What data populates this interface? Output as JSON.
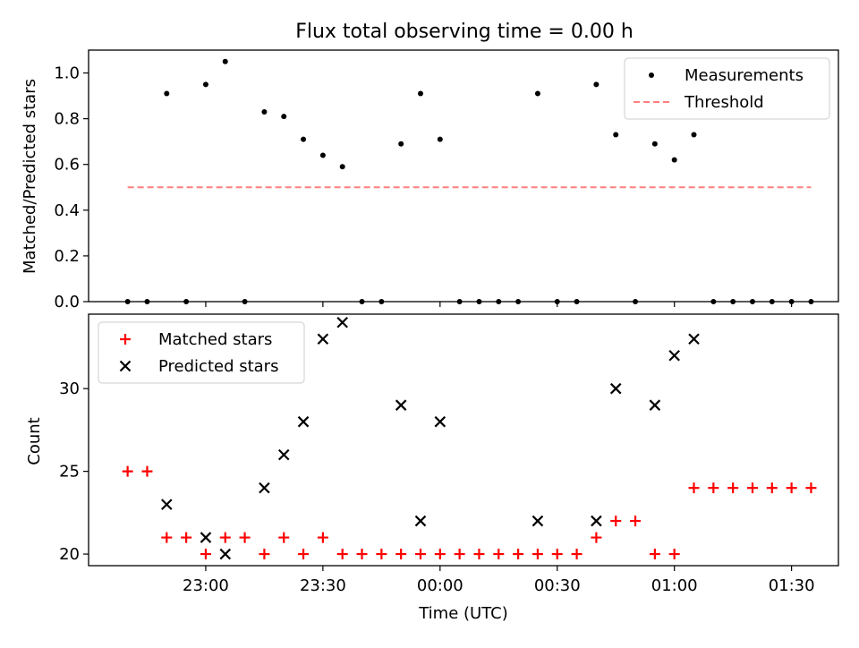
{
  "figure": {
    "title": "Flux total observing time = 0.00 h",
    "top_ylabel": "Matched/Predicted stars",
    "bottom_ylabel": "Count",
    "xlabel": "Time (UTC)"
  },
  "colors": {
    "measurements": "#000000",
    "threshold": "#ff7f7f",
    "matched": "#ff0000",
    "predicted": "#000000"
  },
  "chart_data": [
    {
      "type": "scatter",
      "panel": "top",
      "title": "Flux total observing time = 0.00 h",
      "ylabel": "Matched/Predicted stars",
      "ylim": [
        0,
        1.1
      ],
      "xlim": [
        "22:30",
        "01:42"
      ],
      "yticks": [
        "0.0",
        "0.2",
        "0.4",
        "0.6",
        "0.8",
        "1.0"
      ],
      "legend_position": "top-right",
      "series": [
        {
          "name": "Measurements",
          "marker": "dot",
          "x": [
            "22:40",
            "22:45",
            "22:50",
            "22:55",
            "23:00",
            "23:05",
            "23:10",
            "23:15",
            "23:20",
            "23:25",
            "23:30",
            "23:35",
            "23:40",
            "23:45",
            "23:50",
            "23:55",
            "00:00",
            "00:05",
            "00:10",
            "00:15",
            "00:20",
            "00:25",
            "00:30",
            "00:35",
            "00:40",
            "00:45",
            "00:50",
            "00:55",
            "01:00",
            "01:05",
            "01:10",
            "01:15",
            "01:20",
            "01:25",
            "01:30",
            "01:35"
          ],
          "y": [
            0,
            0,
            0.91,
            0,
            0.95,
            1.05,
            0,
            0.83,
            0.81,
            0.71,
            0.64,
            0.59,
            0,
            0,
            0.69,
            0.91,
            0.71,
            0,
            0,
            0,
            0,
            0.91,
            0,
            0,
            0.95,
            0.73,
            0,
            0.69,
            0.62,
            0.73,
            0,
            0,
            0,
            0,
            0,
            0
          ]
        },
        {
          "name": "Threshold",
          "style": "dashed",
          "x": [
            "22:40",
            "01:35"
          ],
          "y": [
            0.5,
            0.5
          ]
        }
      ]
    },
    {
      "type": "scatter",
      "panel": "bottom",
      "ylabel": "Count",
      "xlabel": "Time (UTC)",
      "ylim": [
        19.3,
        34.5
      ],
      "xlim": [
        "22:30",
        "01:42"
      ],
      "yticks": [
        "20",
        "25",
        "30"
      ],
      "xticks": [
        "23:00",
        "23:30",
        "00:00",
        "00:30",
        "01:00",
        "01:30"
      ],
      "legend_position": "top-left",
      "series": [
        {
          "name": "Matched stars",
          "marker": "plus",
          "x": [
            "22:40",
            "22:45",
            "22:50",
            "22:55",
            "23:00",
            "23:05",
            "23:10",
            "23:15",
            "23:20",
            "23:25",
            "23:30",
            "23:35",
            "23:40",
            "23:45",
            "23:50",
            "23:55",
            "00:00",
            "00:05",
            "00:10",
            "00:15",
            "00:20",
            "00:25",
            "00:30",
            "00:35",
            "00:40",
            "00:45",
            "00:50",
            "00:55",
            "01:00",
            "01:05",
            "01:10",
            "01:15",
            "01:20",
            "01:25",
            "01:30",
            "01:35"
          ],
          "y": [
            25,
            25,
            21,
            21,
            20,
            21,
            21,
            20,
            21,
            20,
            21,
            20,
            20,
            20,
            20,
            20,
            20,
            20,
            20,
            20,
            20,
            20,
            20,
            20,
            21,
            22,
            22,
            20,
            20,
            24,
            24,
            24,
            24,
            24,
            24,
            24
          ]
        },
        {
          "name": "Predicted stars",
          "marker": "x",
          "x": [
            "22:50",
            "23:00",
            "23:05",
            "23:15",
            "23:20",
            "23:25",
            "23:30",
            "23:35",
            "23:50",
            "23:55",
            "00:00",
            "00:25",
            "00:40",
            "00:45",
            "00:55",
            "01:00",
            "01:05"
          ],
          "y": [
            23,
            21,
            20,
            24,
            26,
            28,
            33,
            34,
            29,
            22,
            28,
            22,
            22,
            30,
            29,
            32,
            33
          ]
        }
      ]
    }
  ]
}
